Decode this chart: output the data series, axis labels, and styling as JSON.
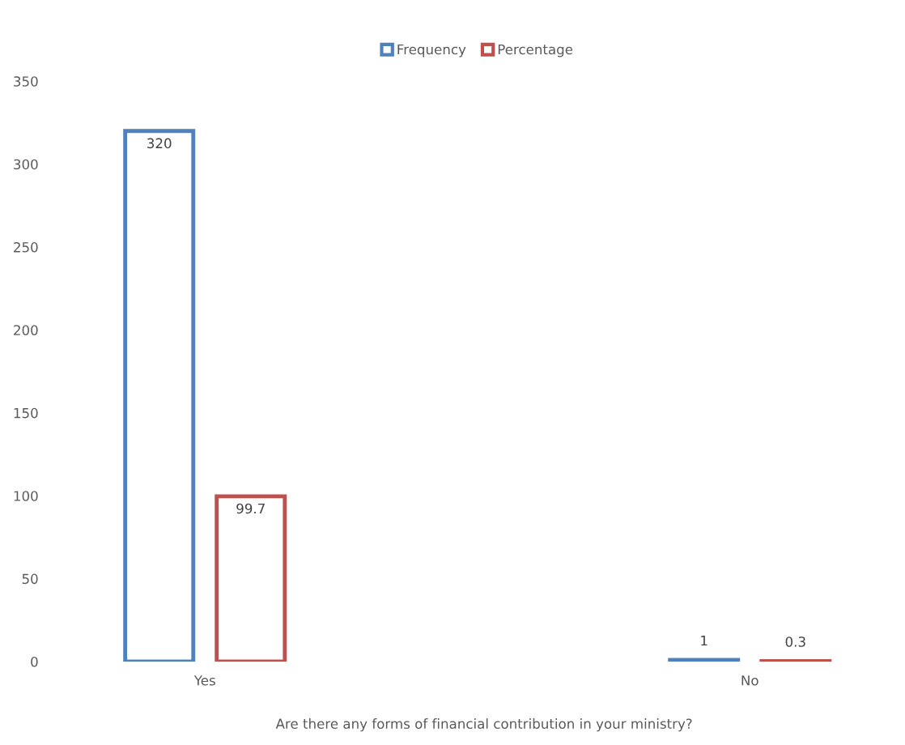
{
  "chart_data": {
    "type": "bar",
    "xlabel": "Are there any forms of financial contribution in your ministry?",
    "categories": [
      "Yes",
      "No"
    ],
    "series": [
      {
        "name": "Frequency",
        "color": "#4f81bd",
        "values": [
          320,
          1
        ]
      },
      {
        "name": "Percentage",
        "color": "#c0504d",
        "values": [
          99.7,
          0.3
        ]
      }
    ],
    "ylim": [
      0,
      350
    ],
    "yticks": [
      0,
      50,
      100,
      150,
      200,
      250,
      300,
      350
    ],
    "grid": false,
    "legend": "top",
    "data_labels": true
  }
}
